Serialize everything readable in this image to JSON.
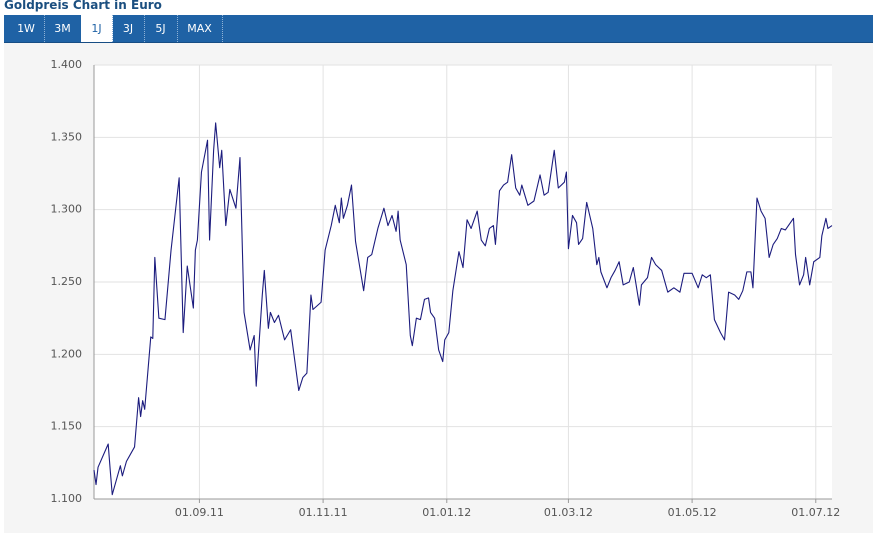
{
  "header": {
    "title": "Goldpreis Chart in Euro"
  },
  "tabs": [
    "1W",
    "3M",
    "1J",
    "3J",
    "5J",
    "MAX"
  ],
  "active_tab": "1J",
  "chart_data": {
    "type": "line",
    "color": "#1c1c7e",
    "grid": true,
    "xlim": [
      "2011-07-11",
      "2012-07-09"
    ],
    "xticks": [
      {
        "value": "2011-09-01",
        "label": "01.09.11"
      },
      {
        "value": "2011-11-01",
        "label": "01.11.11"
      },
      {
        "value": "2012-01-01",
        "label": "01.01.12"
      },
      {
        "value": "2012-03-01",
        "label": "01.03.12"
      },
      {
        "value": "2012-05-01",
        "label": "01.05.12"
      },
      {
        "value": "2012-07-01",
        "label": "01.07.12"
      }
    ],
    "ylim": [
      1.1,
      1.4
    ],
    "yticks": [
      {
        "value": 1.1,
        "label": "1.100"
      },
      {
        "value": 1.15,
        "label": "1.150"
      },
      {
        "value": 1.2,
        "label": "1.200"
      },
      {
        "value": 1.25,
        "label": "1.250"
      },
      {
        "value": 1.3,
        "label": "1.300"
      },
      {
        "value": 1.35,
        "label": "1.350"
      },
      {
        "value": 1.4,
        "label": "1.400"
      }
    ],
    "x": [
      "2011-07-11",
      "2011-07-12",
      "2011-07-13",
      "2011-07-18",
      "2011-07-19",
      "2011-07-20",
      "2011-07-24",
      "2011-07-25",
      "2011-07-27",
      "2011-07-31",
      "2011-08-02",
      "2011-08-03",
      "2011-08-04",
      "2011-08-05",
      "2011-08-08",
      "2011-08-09",
      "2011-08-10",
      "2011-08-12",
      "2011-08-15",
      "2011-08-16",
      "2011-08-18",
      "2011-08-22",
      "2011-08-24",
      "2011-08-26",
      "2011-08-29",
      "2011-08-30",
      "2011-08-31",
      "2011-09-02",
      "2011-09-05",
      "2011-09-06",
      "2011-09-08",
      "2011-09-09",
      "2011-09-11",
      "2011-09-12",
      "2011-09-14",
      "2011-09-16",
      "2011-09-19",
      "2011-09-21",
      "2011-09-23",
      "2011-09-26",
      "2011-09-28",
      "2011-09-29",
      "2011-10-02",
      "2011-10-03",
      "2011-10-05",
      "2011-10-06",
      "2011-10-08",
      "2011-10-10",
      "2011-10-13",
      "2011-10-16",
      "2011-10-20",
      "2011-10-22",
      "2011-10-24",
      "2011-10-26",
      "2011-10-27",
      "2011-10-31",
      "2011-11-02",
      "2011-11-05",
      "2011-11-07",
      "2011-11-09",
      "2011-11-10",
      "2011-11-11",
      "2011-11-13",
      "2011-11-15",
      "2011-11-17",
      "2011-11-21",
      "2011-11-23",
      "2011-11-25",
      "2011-11-28",
      "2011-12-01",
      "2011-12-03",
      "2011-12-05",
      "2011-12-07",
      "2011-12-08",
      "2011-12-09",
      "2011-12-12",
      "2011-12-14",
      "2011-12-15",
      "2011-12-17",
      "2011-12-19",
      "2011-12-21",
      "2011-12-23",
      "2011-12-24",
      "2011-12-26",
      "2011-12-28",
      "2011-12-30",
      "2011-12-31",
      "2012-01-02",
      "2012-01-04",
      "2012-01-07",
      "2012-01-09",
      "2012-01-11",
      "2012-01-13",
      "2012-01-16",
      "2012-01-18",
      "2012-01-20",
      "2012-01-22",
      "2012-01-24",
      "2012-01-25",
      "2012-01-27",
      "2012-01-29",
      "2012-01-31",
      "2012-02-02",
      "2012-02-04",
      "2012-02-06",
      "2012-02-07",
      "2012-02-10",
      "2012-02-13",
      "2012-02-16",
      "2012-02-18",
      "2012-02-20",
      "2012-02-23",
      "2012-02-25",
      "2012-02-28",
      "2012-02-29",
      "2012-03-01",
      "2012-03-03",
      "2012-03-05",
      "2012-03-06",
      "2012-03-08",
      "2012-03-10",
      "2012-03-13",
      "2012-03-15",
      "2012-03-16",
      "2012-03-17",
      "2012-03-20",
      "2012-03-22",
      "2012-03-24",
      "2012-03-26",
      "2012-03-28",
      "2012-03-31",
      "2012-04-02",
      "2012-04-05",
      "2012-04-06",
      "2012-04-09",
      "2012-04-11",
      "2012-04-13",
      "2012-04-16",
      "2012-04-19",
      "2012-04-22",
      "2012-04-25",
      "2012-04-27",
      "2012-05-01",
      "2012-05-04",
      "2012-05-06",
      "2012-05-08",
      "2012-05-10",
      "2012-05-12",
      "2012-05-15",
      "2012-05-17",
      "2012-05-19",
      "2012-05-22",
      "2012-05-24",
      "2012-05-26",
      "2012-05-28",
      "2012-05-30",
      "2012-05-31",
      "2012-06-02",
      "2012-06-04",
      "2012-06-06",
      "2012-06-08",
      "2012-06-10",
      "2012-06-12",
      "2012-06-14",
      "2012-06-16",
      "2012-06-20",
      "2012-06-21",
      "2012-06-23",
      "2012-06-25",
      "2012-06-26",
      "2012-06-28",
      "2012-06-30",
      "2012-07-03",
      "2012-07-04",
      "2012-07-06",
      "2012-07-07",
      "2012-07-09"
    ],
    "values": [
      1.12,
      1.11,
      1.122,
      1.138,
      1.12,
      1.103,
      1.123,
      1.116,
      1.126,
      1.136,
      1.17,
      1.157,
      1.168,
      1.162,
      1.212,
      1.211,
      1.267,
      1.225,
      1.224,
      1.24,
      1.272,
      1.322,
      1.215,
      1.261,
      1.232,
      1.272,
      1.279,
      1.326,
      1.348,
      1.279,
      1.341,
      1.36,
      1.329,
      1.341,
      1.289,
      1.314,
      1.301,
      1.336,
      1.229,
      1.203,
      1.213,
      1.178,
      1.241,
      1.258,
      1.218,
      1.229,
      1.222,
      1.227,
      1.21,
      1.217,
      1.175,
      1.184,
      1.187,
      1.241,
      1.231,
      1.236,
      1.272,
      1.289,
      1.303,
      1.291,
      1.308,
      1.294,
      1.303,
      1.317,
      1.278,
      1.244,
      1.267,
      1.269,
      1.287,
      1.301,
      1.289,
      1.296,
      1.285,
      1.299,
      1.279,
      1.262,
      1.213,
      1.206,
      1.225,
      1.224,
      1.238,
      1.239,
      1.229,
      1.225,
      1.203,
      1.195,
      1.21,
      1.215,
      1.244,
      1.271,
      1.26,
      1.293,
      1.287,
      1.299,
      1.279,
      1.275,
      1.287,
      1.289,
      1.276,
      1.313,
      1.317,
      1.319,
      1.338,
      1.315,
      1.31,
      1.317,
      1.303,
      1.306,
      1.324,
      1.31,
      1.312,
      1.341,
      1.315,
      1.319,
      1.326,
      1.273,
      1.296,
      1.291,
      1.276,
      1.28,
      1.305,
      1.287,
      1.262,
      1.267,
      1.257,
      1.246,
      1.253,
      1.258,
      1.264,
      1.248,
      1.25,
      1.26,
      1.234,
      1.248,
      1.253,
      1.267,
      1.262,
      1.258,
      1.243,
      1.246,
      1.243,
      1.256,
      1.256,
      1.246,
      1.255,
      1.253,
      1.255,
      1.224,
      1.215,
      1.21,
      1.243,
      1.241,
      1.238,
      1.244,
      1.257,
      1.257,
      1.246,
      1.308,
      1.299,
      1.294,
      1.267,
      1.276,
      1.28,
      1.287,
      1.286,
      1.294,
      1.269,
      1.248,
      1.255,
      1.267,
      1.248,
      1.264,
      1.267,
      1.282,
      1.294,
      1.287,
      1.289
    ]
  }
}
